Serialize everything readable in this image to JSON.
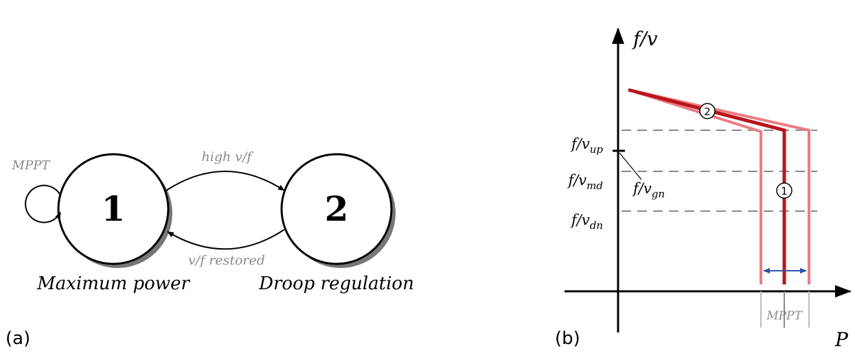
{
  "panel_a": {
    "label": "(a)",
    "states": [
      {
        "number": "1",
        "name": "Maximum power"
      },
      {
        "number": "2",
        "name": "Droop regulation"
      }
    ],
    "self_loop": "MPPT",
    "transition_up": "high v/f",
    "transition_down": "v/f restored"
  },
  "panel_b": {
    "label": "(b)",
    "y_axis": "f/v",
    "x_axis": "P",
    "levels": [
      {
        "base": "f/v",
        "sub": "up"
      },
      {
        "base": "f/v",
        "sub": "md"
      },
      {
        "base": "f/v",
        "sub": "dn"
      }
    ],
    "marker": {
      "base": "f/v",
      "sub": "gn"
    },
    "curve_labels": [
      "2",
      "1"
    ],
    "range_label": "MPPT"
  }
}
